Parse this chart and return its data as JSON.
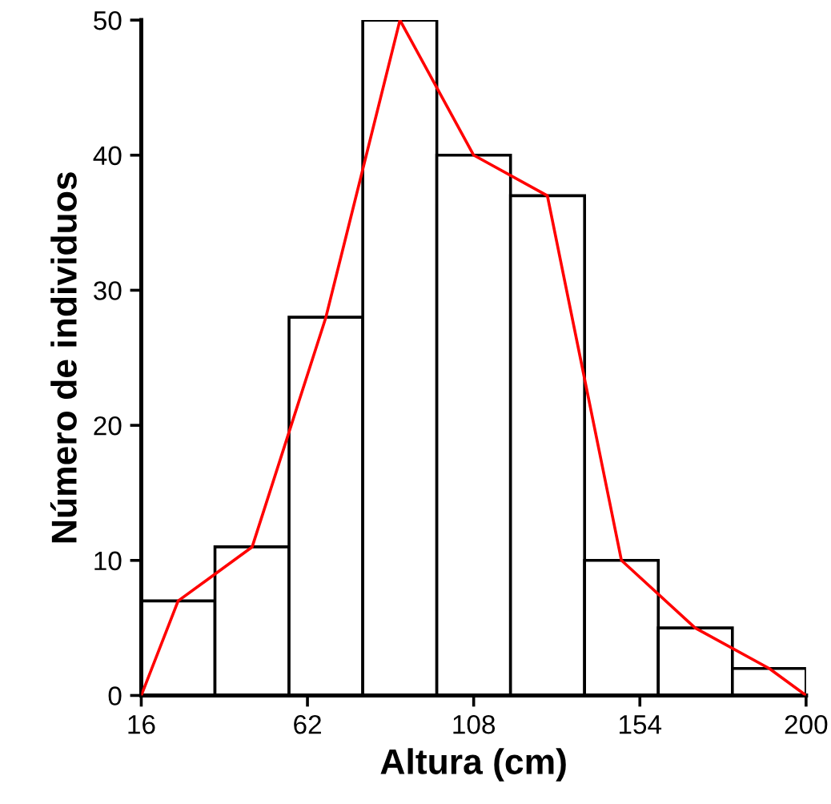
{
  "chart_data": {
    "type": "histogram",
    "xlabel": "Altura (cm)",
    "ylabel": "Número de individuos",
    "bins": [
      16,
      36.4,
      56.9,
      77.3,
      97.8,
      118.2,
      138.7,
      159.1,
      179.6,
      200
    ],
    "series": [
      {
        "color": "#ffffff",
        "values": [
          7,
          11,
          28,
          50,
          40,
          37,
          10,
          5,
          2
        ]
      },
      {
        "type": "line",
        "color": "#ff0000",
        "x": [
          16,
          26.2,
          46.7,
          67.1,
          87.6,
          108,
          128.4,
          148.9,
          169.3,
          189.8,
          200
        ],
        "values": [
          0,
          7,
          11,
          28,
          50,
          40,
          37,
          10,
          5,
          2,
          0
        ]
      }
    ],
    "xlim": [
      16,
      200
    ],
    "xticks": [
      16,
      62,
      108,
      154,
      200
    ],
    "ylim": [
      0,
      50
    ],
    "yticks": [
      0,
      10,
      20,
      30,
      40,
      50
    ],
    "grid": false,
    "legend": false,
    "marker": "none",
    "line_style": "solid"
  }
}
